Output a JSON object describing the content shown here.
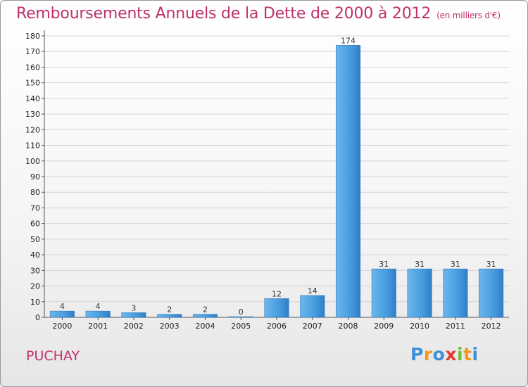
{
  "header": {
    "title": "Remboursements Annuels de la Dette de 2000 à 2012",
    "subtitle": "(en milliers d'€)"
  },
  "footer": {
    "place": "PUCHAY",
    "logo": {
      "letters": [
        "P",
        "r",
        "o",
        "x",
        "i",
        "t",
        "i"
      ],
      "colors": [
        "#3b8fd8",
        "#f29a1e",
        "#3b8fd8",
        "#e63a2e",
        "#6abf3a",
        "#f29a1e",
        "#3b8fd8"
      ]
    }
  },
  "chart_data": {
    "type": "bar",
    "title": "Remboursements Annuels de la Dette de 2000 à 2012",
    "subtitle": "(en milliers d'€)",
    "xlabel": "",
    "ylabel": "",
    "categories": [
      "2000",
      "2001",
      "2002",
      "2003",
      "2004",
      "2005",
      "2006",
      "2007",
      "2008",
      "2009",
      "2010",
      "2011",
      "2012"
    ],
    "values": [
      4,
      4,
      3,
      2,
      2,
      0,
      12,
      14,
      174,
      31,
      31,
      31,
      31
    ],
    "data_labels": [
      "4",
      "4",
      "3",
      "2",
      "2",
      "0",
      "12",
      "14",
      "174",
      "31",
      "31",
      "31",
      "31"
    ],
    "ylim": [
      0,
      180
    ],
    "yticks": [
      0,
      10,
      20,
      30,
      40,
      50,
      60,
      70,
      80,
      90,
      100,
      110,
      120,
      130,
      140,
      150,
      160,
      170,
      180
    ],
    "grid": true,
    "bar_color": "#4a9fe0",
    "bar_color_dark": "#2b76bf"
  }
}
